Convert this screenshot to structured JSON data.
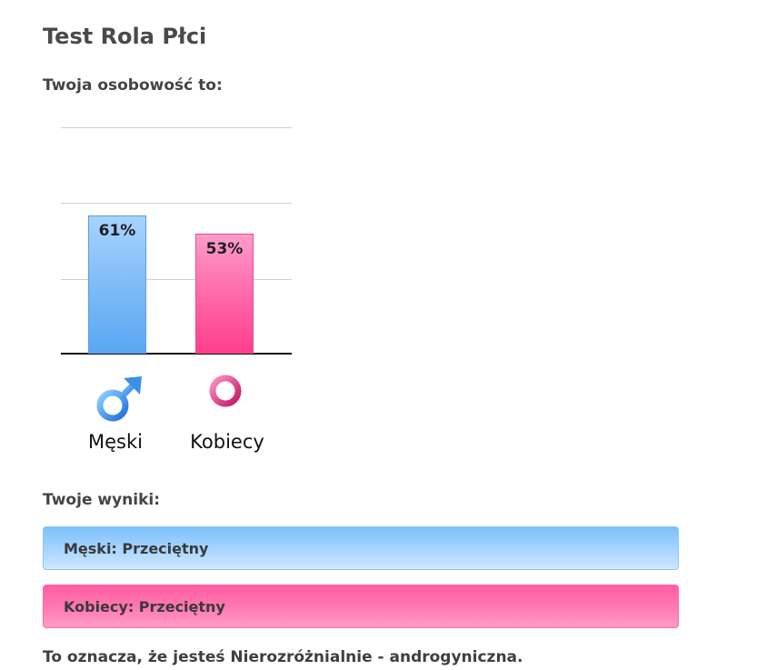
{
  "page": {
    "title": "Test Rola Płci",
    "personality_heading": "Twoja osobowość to:",
    "results_heading": "Twoje wyniki:",
    "conclusion": "To oznacza, że jesteś Nierozróżnialnie - androgyniczna."
  },
  "chart_data": {
    "type": "bar",
    "categories": [
      "Męski",
      "Kobiecy"
    ],
    "values": [
      61,
      53
    ],
    "value_labels": [
      "61%",
      "53%"
    ],
    "ylim": [
      0,
      100
    ],
    "grid": true,
    "colors": [
      "#7fbcf7",
      "#ff5a9c"
    ]
  },
  "icons": {
    "male": "male-symbol-icon",
    "female": "female-symbol-icon"
  },
  "results": [
    {
      "text": "Męski: Przeciętny",
      "color": "#a8d6ff"
    },
    {
      "text": "Kobiecy: Przeciętny",
      "color": "#ff7ab3"
    }
  ]
}
